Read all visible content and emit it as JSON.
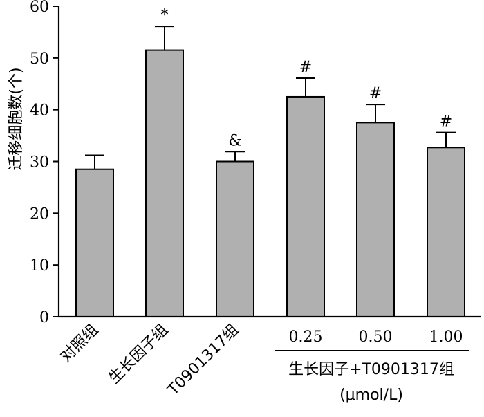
{
  "chart_data": {
    "type": "bar",
    "title": "",
    "xlabel": "",
    "ylabel": "迁移细胞数(个)",
    "ylim": [
      0,
      60
    ],
    "yticks": [
      0,
      10,
      20,
      30,
      40,
      50,
      60
    ],
    "grid": false,
    "categories": [
      "对照组",
      "生长因子组",
      "T0901317组",
      "0.25",
      "0.50",
      "1.00"
    ],
    "values": [
      28.5,
      51.5,
      30.0,
      42.5,
      37.5,
      32.7
    ],
    "errors": [
      2.7,
      4.6,
      1.9,
      3.6,
      3.5,
      2.9
    ],
    "annotations": [
      "",
      "*",
      "&",
      "#",
      "#",
      "#"
    ],
    "bar_color": "#b0b0b0",
    "group": {
      "label_line1": "生长因子+T0901317组",
      "label_line2": "(μmol/L)",
      "members": [
        3,
        4,
        5
      ]
    }
  }
}
